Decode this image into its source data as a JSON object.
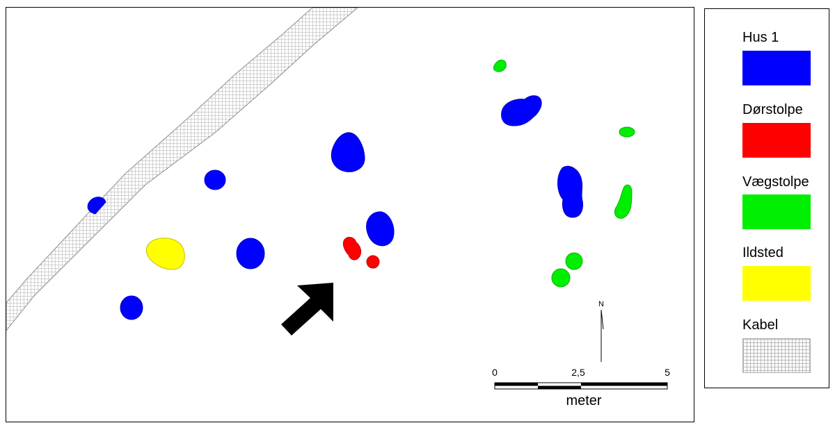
{
  "map": {
    "north_label": "N",
    "scale": {
      "ticks": [
        "0",
        "2,5",
        "5"
      ],
      "unit": "meter"
    },
    "features": [
      {
        "name": "kabel-strip",
        "category": "kabel",
        "color": "#c0c0c0"
      },
      {
        "name": "hus1-posthole",
        "category": "hus1",
        "color": "#0000ff"
      },
      {
        "name": "dorstolpe-posthole",
        "category": "dorstolpe",
        "color": "#ff0000"
      },
      {
        "name": "vaegstolpe-posthole",
        "category": "vaegstolpe",
        "color": "#00ee00"
      },
      {
        "name": "ildsted-hearth",
        "category": "ildsted",
        "color": "#ffff00"
      },
      {
        "name": "direction-arrow",
        "category": "arrow",
        "color": "#000000"
      }
    ]
  },
  "legend": {
    "items": [
      {
        "label": "Hus 1",
        "color": "#0000ff",
        "pattern": "solid"
      },
      {
        "label": "Dørstolpe",
        "color": "#ff0000",
        "pattern": "solid"
      },
      {
        "label": "Vægstolpe",
        "color": "#00ee00",
        "pattern": "solid"
      },
      {
        "label": "Ildsted",
        "color": "#ffff00",
        "pattern": "solid"
      },
      {
        "label": "Kabel",
        "color": "#c8c8c8",
        "pattern": "grid"
      }
    ]
  }
}
